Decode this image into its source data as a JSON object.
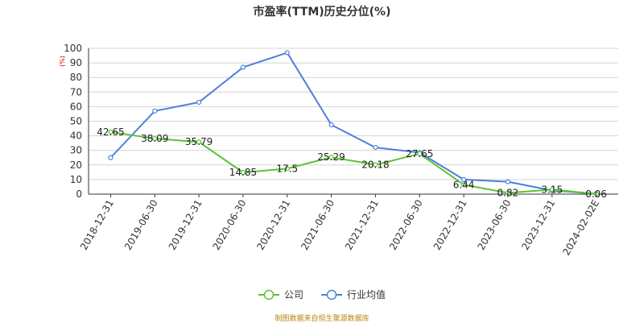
{
  "chart_data": {
    "type": "line",
    "title": "市盈率(TTM)历史分位(%)",
    "ylabel": "(%)",
    "xlabel": "",
    "ylim": [
      0,
      100
    ],
    "yticks": [
      0,
      10,
      20,
      30,
      40,
      50,
      60,
      70,
      80,
      90,
      100
    ],
    "grid": true,
    "legend_position": "bottom",
    "categories": [
      "2018-12-31",
      "2019-06-30",
      "2019-12-31",
      "2020-06-30",
      "2020-12-31",
      "2021-06-30",
      "2021-12-31",
      "2022-06-30",
      "2022-12-31",
      "2023-06-30",
      "2023-12-31",
      "2024-02-02E"
    ],
    "series": [
      {
        "name": "公司",
        "color": "#5ac534",
        "values": [
          42.65,
          38.09,
          35.79,
          14.85,
          17.5,
          25.29,
          20.18,
          27.65,
          6.44,
          0.82,
          3.15,
          0.06
        ],
        "labels": [
          "42.65",
          "38.09",
          "35.79",
          "14.85",
          "17.5",
          "25.29",
          "20.18",
          "27.65",
          "6.44",
          "0.82",
          "3.15",
          "0.06"
        ]
      },
      {
        "name": "行业均值",
        "color": "#4e7fdc",
        "values": [
          25.0,
          57.0,
          63.0,
          87.0,
          97.0,
          47.5,
          32.0,
          28.5,
          10.0,
          8.5,
          2.5,
          0.3
        ]
      }
    ]
  },
  "footer": {
    "source": "制图数据来自恒生聚源数据库"
  }
}
